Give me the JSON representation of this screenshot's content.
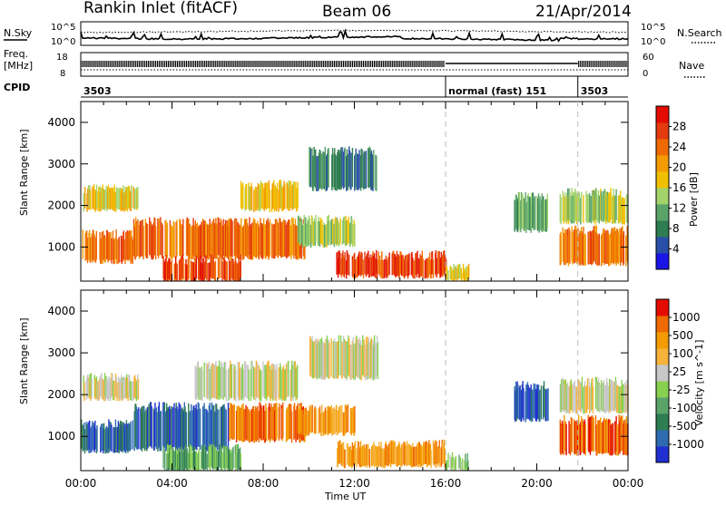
{
  "header": {
    "station": "Rankin Inlet (fitACF)",
    "beam": "Beam 06",
    "date": "21/Apr/2014"
  },
  "sky_panel": {
    "left_label": "N.Sky",
    "right_label": "N.Search",
    "left_ticks": [
      "10^5",
      "10^0"
    ],
    "right_ticks": [
      "10^5",
      "10^0"
    ],
    "right_legend_style": "dotted"
  },
  "freq_panel": {
    "left_label_top": "Freq.",
    "left_label_unit": "[MHz]",
    "left_ticks": [
      "18",
      "8"
    ],
    "right_label": "Nave",
    "right_ticks": [
      "60",
      "0"
    ],
    "right_legend_style": "dotted"
  },
  "cpid_panel": {
    "label": "CPID",
    "segments": [
      {
        "start_hr": 0,
        "end_hr": 16,
        "text": "3503"
      },
      {
        "start_hr": 16,
        "end_hr": 21.8,
        "text": "normal (fast) 151"
      },
      {
        "start_hr": 21.8,
        "end_hr": 24,
        "text": "3503"
      }
    ]
  },
  "chart_data": [
    {
      "type": "heatmap",
      "title": "",
      "ylabel": "Slant Range [km]",
      "xlabel": "Time UT",
      "ylim": [
        180,
        4500
      ],
      "yticks": [
        1000,
        2000,
        3000,
        4000
      ],
      "xticks": [
        "00:00",
        "04:00",
        "08:00",
        "12:00",
        "16:00",
        "20:00",
        "00:00"
      ],
      "colorbar": {
        "label": "Power [dB]",
        "ticks": [
          "4",
          "8",
          "12",
          "16",
          "20",
          "24",
          "28"
        ],
        "colors": [
          "#1a14e6",
          "#2a4fa8",
          "#2f7d52",
          "#5aa46a",
          "#a2d36b",
          "#f0c000",
          "#f39b00",
          "#ef6a00",
          "#e43a10",
          "#e40b00"
        ]
      },
      "echo_regions": [
        {
          "t0": 0.0,
          "t1": 2.3,
          "r0": 650,
          "r1": 1300,
          "level": 7
        },
        {
          "t0": 0.1,
          "t1": 2.5,
          "r0": 1900,
          "r1": 2400,
          "level": 5
        },
        {
          "t0": 2.3,
          "t1": 9.8,
          "r0": 750,
          "r1": 1600,
          "level": 7
        },
        {
          "t0": 3.6,
          "t1": 7.0,
          "r0": 200,
          "r1": 700,
          "level": 8
        },
        {
          "t0": 7.0,
          "t1": 9.5,
          "r0": 1900,
          "r1": 2500,
          "level": 5
        },
        {
          "t0": 9.5,
          "t1": 12.0,
          "r0": 1050,
          "r1": 1650,
          "level": 4
        },
        {
          "t0": 10.0,
          "t1": 13.0,
          "r0": 2400,
          "r1": 3300,
          "level": 2
        },
        {
          "t0": 11.2,
          "t1": 16.0,
          "r0": 300,
          "r1": 800,
          "level": 8
        },
        {
          "t0": 16.0,
          "t1": 17.0,
          "r0": 200,
          "r1": 500,
          "level": 5
        },
        {
          "t0": 19.0,
          "t1": 20.5,
          "r0": 1400,
          "r1": 2200,
          "level": 3
        },
        {
          "t0": 21.0,
          "t1": 24.0,
          "r0": 600,
          "r1": 1400,
          "level": 7
        },
        {
          "t0": 21.0,
          "t1": 24.0,
          "r0": 1600,
          "r1": 2300,
          "level": 4
        }
      ]
    },
    {
      "type": "heatmap",
      "title": "",
      "ylabel": "Slant Range [km]",
      "xlabel": "Time UT",
      "ylim": [
        180,
        4500
      ],
      "yticks": [
        1000,
        2000,
        3000,
        4000
      ],
      "xticks": [
        "00:00",
        "04:00",
        "08:00",
        "12:00",
        "16:00",
        "20:00",
        "00:00"
      ],
      "colorbar": {
        "label": "Velocity [m s^-1]",
        "ticks": [
          "1000",
          "500",
          "100",
          "25",
          "-25",
          "-100",
          "-500",
          "-1000"
        ],
        "colors": [
          "#2030d0",
          "#2e6bb0",
          "#2f7d52",
          "#5aa46a",
          "#88d050",
          "#c8c8c8",
          "#f7b23a",
          "#f39b00",
          "#ef6a00",
          "#e40b00"
        ]
      },
      "echo_regions": [
        {
          "t0": 0.0,
          "t1": 2.3,
          "r0": 650,
          "r1": 1300,
          "level": 1
        },
        {
          "t0": 0.1,
          "t1": 2.5,
          "r0": 1900,
          "r1": 2400,
          "level": 5
        },
        {
          "t0": 2.3,
          "t1": 6.5,
          "r0": 700,
          "r1": 1700,
          "level": 1
        },
        {
          "t0": 6.5,
          "t1": 9.8,
          "r0": 900,
          "r1": 1700,
          "level": 8
        },
        {
          "t0": 3.6,
          "t1": 7.0,
          "r0": 200,
          "r1": 700,
          "level": 3
        },
        {
          "t0": 5.0,
          "t1": 9.5,
          "r0": 1900,
          "r1": 2700,
          "level": 5
        },
        {
          "t0": 9.5,
          "t1": 12.0,
          "r0": 1050,
          "r1": 1650,
          "level": 7
        },
        {
          "t0": 10.0,
          "t1": 13.0,
          "r0": 2400,
          "r1": 3300,
          "level": 5
        },
        {
          "t0": 11.2,
          "t1": 16.0,
          "r0": 300,
          "r1": 800,
          "level": 7
        },
        {
          "t0": 16.0,
          "t1": 17.0,
          "r0": 200,
          "r1": 500,
          "level": 4
        },
        {
          "t0": 19.0,
          "t1": 20.5,
          "r0": 1400,
          "r1": 2200,
          "level": 1
        },
        {
          "t0": 21.0,
          "t1": 24.0,
          "r0": 600,
          "r1": 1400,
          "level": 8
        },
        {
          "t0": 21.0,
          "t1": 24.0,
          "r0": 1600,
          "r1": 2300,
          "level": 5
        }
      ]
    }
  ]
}
